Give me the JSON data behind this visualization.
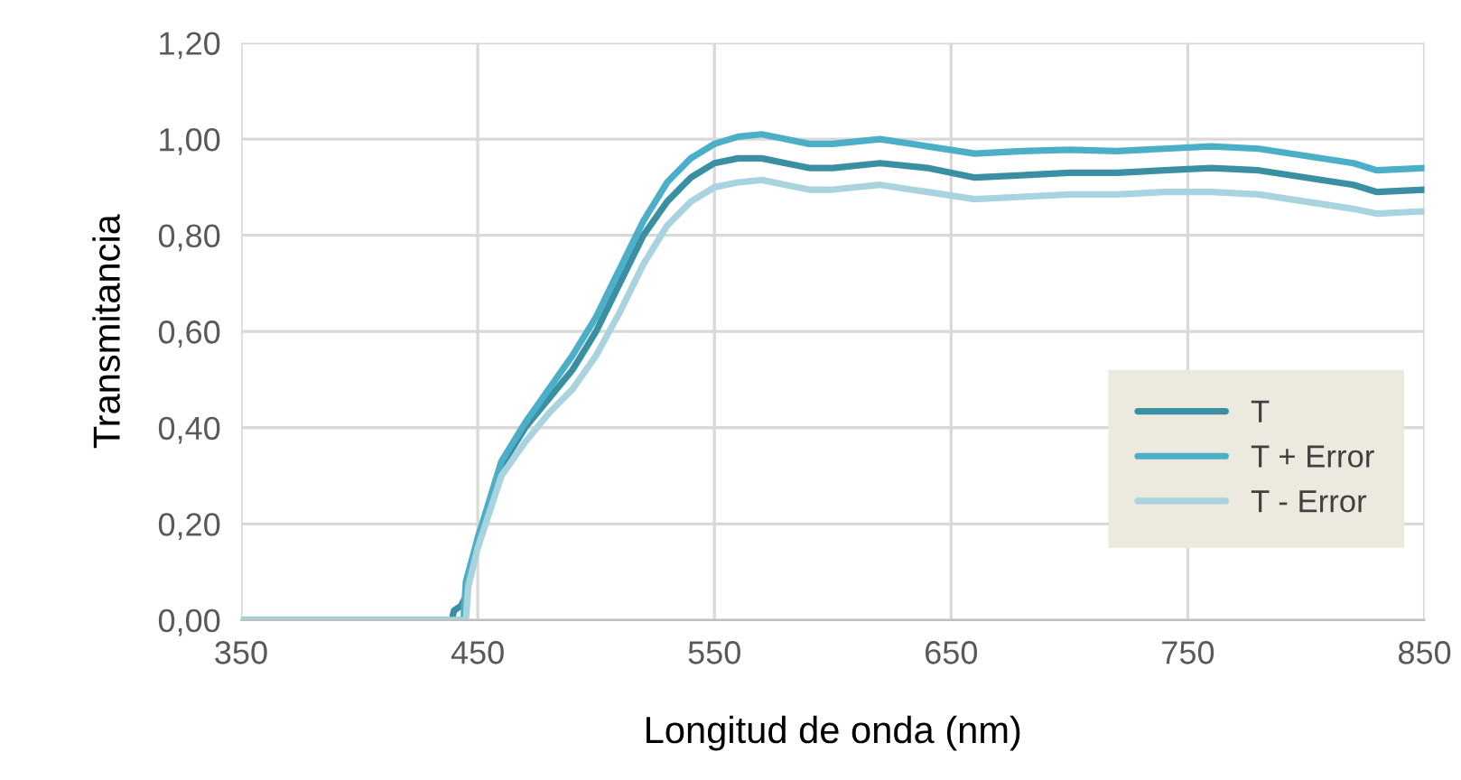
{
  "chart_data": {
    "type": "line",
    "xlabel": "Longitud de onda (nm)",
    "ylabel": "Transmitancia",
    "xlim": [
      350,
      850
    ],
    "xticks": [
      350,
      450,
      550,
      650,
      750,
      850
    ],
    "ylim": [
      0,
      1.2
    ],
    "yticks": [
      {
        "value": 0,
        "label": "0,00"
      },
      {
        "value": 0.2,
        "label": "0,20"
      },
      {
        "value": 0.4,
        "label": "0,40"
      },
      {
        "value": 0.6,
        "label": "0,60"
      },
      {
        "value": 0.8,
        "label": "0,80"
      },
      {
        "value": 1.0,
        "label": "1,00"
      },
      {
        "value": 1.2,
        "label": "1,20"
      }
    ],
    "grid": true,
    "legend": "bottom right",
    "marker": "none",
    "line_style": "solid",
    "series": [
      {
        "name": "T",
        "color": "#3a8fa3",
        "x": [
          350,
          400,
          439,
          440,
          443,
          445,
          450,
          460,
          470,
          480,
          490,
          500,
          510,
          520,
          530,
          540,
          550,
          560,
          570,
          580,
          590,
          600,
          620,
          640,
          660,
          680,
          700,
          720,
          740,
          760,
          780,
          800,
          820,
          830,
          850
        ],
        "values": [
          0,
          0,
          0,
          0.02,
          0.03,
          0.05,
          0.17,
          0.32,
          0.4,
          0.46,
          0.52,
          0.6,
          0.7,
          0.8,
          0.87,
          0.92,
          0.95,
          0.96,
          0.96,
          0.95,
          0.94,
          0.94,
          0.95,
          0.94,
          0.92,
          0.925,
          0.93,
          0.93,
          0.935,
          0.94,
          0.935,
          0.92,
          0.905,
          0.89,
          0.895
        ]
      },
      {
        "name": "T + Error",
        "color": "#4bafc8",
        "x": [
          350,
          400,
          444,
          445,
          450,
          460,
          470,
          480,
          490,
          500,
          510,
          520,
          530,
          540,
          550,
          560,
          570,
          580,
          590,
          600,
          620,
          640,
          660,
          680,
          700,
          720,
          740,
          760,
          780,
          800,
          820,
          830,
          850
        ],
        "values": [
          0,
          0,
          0,
          0.08,
          0.17,
          0.33,
          0.41,
          0.48,
          0.55,
          0.63,
          0.73,
          0.83,
          0.91,
          0.96,
          0.99,
          1.005,
          1.01,
          1.0,
          0.99,
          0.99,
          1.0,
          0.985,
          0.97,
          0.975,
          0.978,
          0.975,
          0.98,
          0.985,
          0.98,
          0.965,
          0.95,
          0.935,
          0.94
        ]
      },
      {
        "name": "T - Error",
        "color": "#a8d3df",
        "x": [
          350,
          400,
          445,
          446,
          450,
          460,
          470,
          480,
          490,
          500,
          510,
          520,
          530,
          540,
          550,
          560,
          570,
          580,
          590,
          600,
          620,
          640,
          660,
          680,
          700,
          720,
          740,
          760,
          780,
          800,
          820,
          830,
          850
        ],
        "values": [
          0,
          0,
          0,
          0.07,
          0.15,
          0.3,
          0.37,
          0.43,
          0.48,
          0.55,
          0.64,
          0.74,
          0.82,
          0.87,
          0.9,
          0.91,
          0.915,
          0.905,
          0.895,
          0.895,
          0.905,
          0.89,
          0.875,
          0.88,
          0.885,
          0.885,
          0.89,
          0.89,
          0.885,
          0.87,
          0.855,
          0.845,
          0.85
        ]
      }
    ]
  }
}
